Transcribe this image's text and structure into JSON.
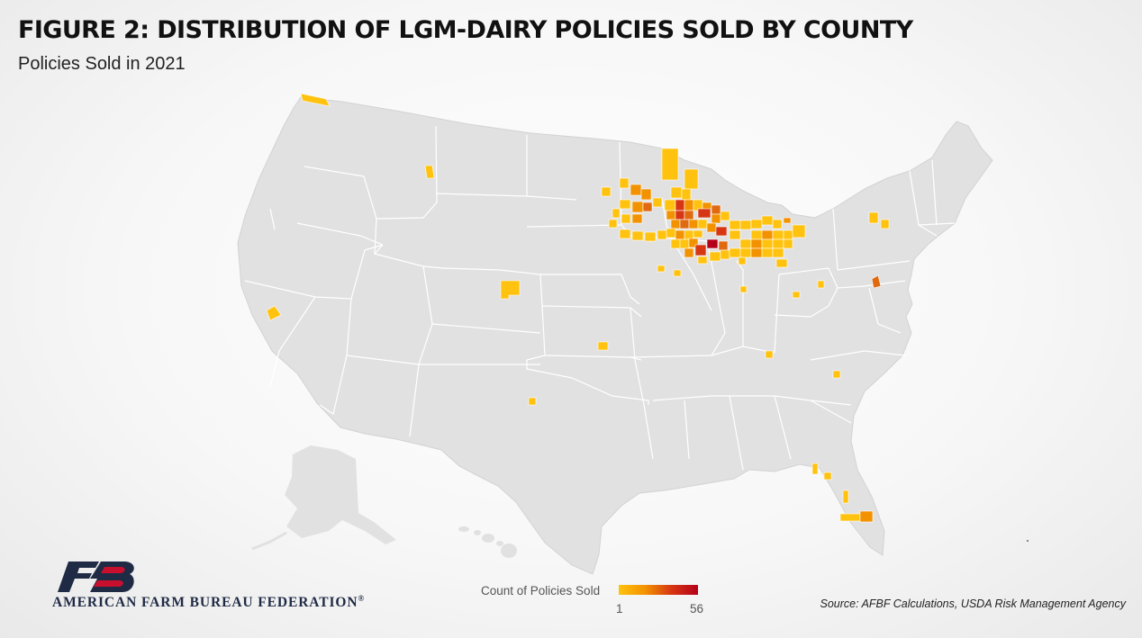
{
  "header": {
    "title": "FIGURE 2: DISTRIBUTION OF LGM-DAIRY POLICIES SOLD BY COUNTY",
    "subtitle": "Policies Sold in 2021"
  },
  "legend": {
    "title": "Count of Policies Sold",
    "min": "1",
    "max": "56",
    "color_low": "#ffc20e",
    "color_high": "#b5001a"
  },
  "source": "Source: AFBF Calculations, USDA Risk Management Agency",
  "organization": {
    "name": "AMERICAN FARM BUREAU FEDERATION",
    "registered_mark": "®"
  },
  "colors": {
    "land": "#e1e1e1",
    "state_border": "#ffffff",
    "low": "#ffc20e",
    "mid": "#f39200",
    "high": "#d63612",
    "max": "#b5001a"
  }
}
